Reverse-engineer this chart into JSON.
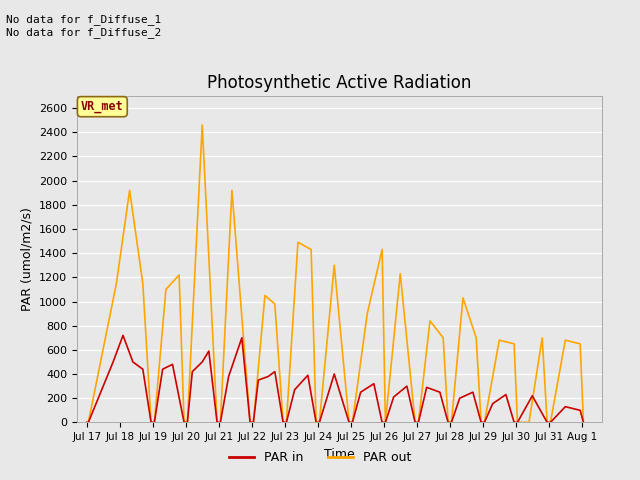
{
  "title": "Photosynthetic Active Radiation",
  "xlabel": "Time",
  "ylabel": "PAR (umol/m2/s)",
  "annotation_text": "No data for f_Diffuse_1\nNo data for f_Diffuse_2",
  "legend_label_text": "VR_met",
  "legend_labels": [
    "PAR in",
    "PAR out"
  ],
  "par_in_color": "#cc0000",
  "par_out_color": "#ffa500",
  "fig_bg_color": "#e8e8e8",
  "plot_bg_color": "#e8e8e8",
  "grid_color": "#ffffff",
  "ylim": [
    0,
    2700
  ],
  "yticks": [
    0,
    200,
    400,
    600,
    800,
    1000,
    1200,
    1400,
    1600,
    1800,
    2000,
    2200,
    2400,
    2600
  ],
  "xtick_labels": [
    "Jul 17",
    "Jul 18",
    "Jul 19",
    "Jul 20",
    "Jul 21",
    "Jul 22",
    "Jul 23",
    "Jul 24",
    "Jul 25",
    "Jul 26",
    "Jul 27",
    "Jul 28",
    "Jul 29",
    "Jul 30",
    "Jul 31",
    "Aug 1"
  ],
  "par_out_t": [
    0.0,
    0.05,
    0.9,
    1.3,
    1.7,
    1.95,
    2.05,
    2.4,
    2.8,
    2.95,
    3.05,
    3.5,
    3.95,
    4.05,
    4.4,
    4.95,
    5.05,
    5.4,
    5.7,
    5.95,
    6.05,
    6.4,
    6.8,
    6.95,
    7.05,
    7.5,
    7.95,
    8.05,
    8.5,
    8.95,
    9.05,
    9.5,
    9.95,
    10.05,
    10.4,
    10.8,
    10.95,
    11.05,
    11.4,
    11.8,
    11.95,
    12.05,
    12.5,
    12.95,
    13.05,
    13.4,
    13.8,
    13.95,
    14.05,
    14.5,
    14.95,
    15.05
  ],
  "par_out_v": [
    0,
    0,
    1150,
    1920,
    1150,
    0,
    0,
    1100,
    1220,
    0,
    0,
    2460,
    0,
    0,
    1920,
    0,
    0,
    1050,
    980,
    0,
    0,
    1490,
    1430,
    0,
    0,
    1300,
    0,
    0,
    900,
    1430,
    0,
    1230,
    0,
    0,
    840,
    700,
    0,
    0,
    1030,
    700,
    0,
    0,
    680,
    650,
    0,
    0,
    700,
    0,
    0,
    680,
    650,
    0
  ],
  "par_in_t": [
    0.0,
    0.05,
    0.8,
    1.1,
    1.4,
    1.7,
    1.95,
    2.05,
    2.3,
    2.6,
    2.95,
    3.05,
    3.2,
    3.5,
    3.7,
    3.95,
    4.05,
    4.3,
    4.7,
    4.95,
    5.05,
    5.2,
    5.5,
    5.7,
    5.95,
    6.05,
    6.3,
    6.7,
    6.95,
    7.05,
    7.5,
    7.95,
    8.05,
    8.3,
    8.7,
    8.95,
    9.05,
    9.3,
    9.7,
    9.95,
    10.05,
    10.3,
    10.7,
    10.95,
    11.05,
    11.3,
    11.7,
    11.95,
    12.05,
    12.3,
    12.7,
    12.95,
    13.05,
    13.5,
    13.95,
    14.05,
    14.5,
    14.95,
    15.05
  ],
  "par_in_v": [
    0,
    0,
    500,
    720,
    500,
    440,
    0,
    0,
    440,
    480,
    0,
    0,
    420,
    500,
    590,
    0,
    0,
    380,
    700,
    0,
    0,
    350,
    380,
    420,
    0,
    0,
    270,
    390,
    0,
    0,
    400,
    0,
    0,
    250,
    320,
    0,
    0,
    210,
    300,
    0,
    0,
    290,
    250,
    0,
    0,
    200,
    250,
    0,
    0,
    155,
    230,
    0,
    0,
    220,
    0,
    0,
    130,
    100,
    0
  ]
}
